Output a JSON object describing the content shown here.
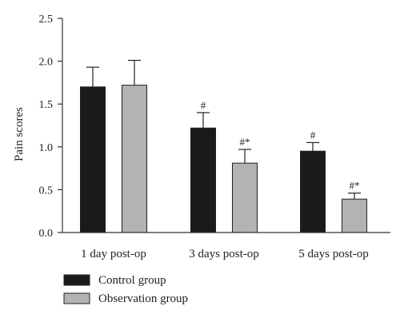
{
  "chart_data": {
    "type": "bar",
    "ylabel": "Pain scores",
    "xlabel": "",
    "ylim": [
      0,
      2.5
    ],
    "yticks": [
      "0.0",
      "0.5",
      "1.0",
      "1.5",
      "2.0",
      "2.5"
    ],
    "categories": [
      "1 day post-op",
      "3 days post-op",
      "5 days post-op"
    ],
    "series": [
      {
        "name": "Control group",
        "color": "#1a1a1a",
        "values": [
          1.7,
          1.22,
          0.95
        ],
        "errors": [
          0.23,
          0.18,
          0.1
        ],
        "annotations": [
          "",
          "#",
          "#"
        ]
      },
      {
        "name": "Observation group",
        "color": "#b3b3b3",
        "values": [
          1.72,
          0.81,
          0.39
        ],
        "errors": [
          0.29,
          0.16,
          0.07
        ],
        "annotations": [
          "",
          "#*",
          "#*"
        ]
      }
    ],
    "legend_position": "bottom-left",
    "grid": false
  }
}
